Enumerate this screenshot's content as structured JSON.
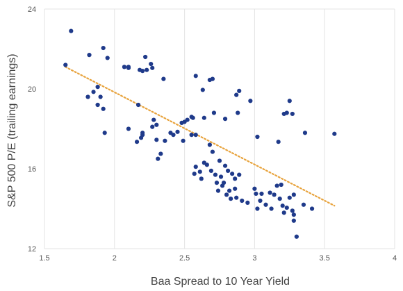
{
  "chart_data": {
    "type": "scatter",
    "xlabel": "Baa Spread to 10 Year Yield",
    "ylabel": "S&P 500 P/E (trailing earnings)",
    "xlim": [
      1.5,
      4
    ],
    "ylim": [
      12,
      24
    ],
    "xticks": [
      1.5,
      2,
      2.5,
      3,
      3.5,
      4
    ],
    "yticks": [
      12,
      16,
      20,
      24
    ],
    "xtick_labels": [
      "1.5",
      "2",
      "2.5",
      "3",
      "3.5",
      "4"
    ],
    "ytick_labels": [
      "12",
      "16",
      "20",
      "24"
    ],
    "grid": "vertical",
    "point_color": "#1f3a8a",
    "trendline": {
      "type": "linear",
      "color": "#e8a33c",
      "style": "dotted",
      "x": [
        1.65,
        3.57
      ],
      "y": [
        21.1,
        14.15
      ]
    },
    "points": [
      [
        1.69,
        22.9
      ],
      [
        1.65,
        21.2
      ],
      [
        1.82,
        21.7
      ],
      [
        1.92,
        22.05
      ],
      [
        1.95,
        21.55
      ],
      [
        2.07,
        21.1
      ],
      [
        2.1,
        21.05
      ],
      [
        2.1,
        21.1
      ],
      [
        2.18,
        20.95
      ],
      [
        2.2,
        20.9
      ],
      [
        2.22,
        21.6
      ],
      [
        2.26,
        21.25
      ],
      [
        2.27,
        21.05
      ],
      [
        2.23,
        20.95
      ],
      [
        2.35,
        20.5
      ],
      [
        2.58,
        20.65
      ],
      [
        2.63,
        19.95
      ],
      [
        2.68,
        20.45
      ],
      [
        2.7,
        20.5
      ],
      [
        2.89,
        19.9
      ],
      [
        2.87,
        19.7
      ],
      [
        2.97,
        19.4
      ],
      [
        3.25,
        19.4
      ],
      [
        1.81,
        19.6
      ],
      [
        1.85,
        19.85
      ],
      [
        1.88,
        20.1
      ],
      [
        1.9,
        19.6
      ],
      [
        1.88,
        19.2
      ],
      [
        1.92,
        19.0
      ],
      [
        2.17,
        19.2
      ],
      [
        3.21,
        18.75
      ],
      [
        3.23,
        18.8
      ],
      [
        3.27,
        18.75
      ],
      [
        2.71,
        18.8
      ],
      [
        2.88,
        18.8
      ],
      [
        2.79,
        18.5
      ],
      [
        2.64,
        18.55
      ],
      [
        2.52,
        18.45
      ],
      [
        2.55,
        18.6
      ],
      [
        2.56,
        18.55
      ],
      [
        2.48,
        18.3
      ],
      [
        2.5,
        18.35
      ],
      [
        2.28,
        18.45
      ],
      [
        2.3,
        18.2
      ],
      [
        2.27,
        18.1
      ],
      [
        2.1,
        18.0
      ],
      [
        1.93,
        17.8
      ],
      [
        2.2,
        17.8
      ],
      [
        2.2,
        17.7
      ],
      [
        2.19,
        17.55
      ],
      [
        2.16,
        17.35
      ],
      [
        2.3,
        17.45
      ],
      [
        2.36,
        17.4
      ],
      [
        2.4,
        17.8
      ],
      [
        2.42,
        17.7
      ],
      [
        2.45,
        17.85
      ],
      [
        2.49,
        17.4
      ],
      [
        2.55,
        17.7
      ],
      [
        2.58,
        17.7
      ],
      [
        3.02,
        17.6
      ],
      [
        3.17,
        17.35
      ],
      [
        3.36,
        17.8
      ],
      [
        3.57,
        17.75
      ],
      [
        2.68,
        17.2
      ],
      [
        2.7,
        16.85
      ],
      [
        2.33,
        16.75
      ],
      [
        2.31,
        16.5
      ],
      [
        2.75,
        16.4
      ],
      [
        2.58,
        16.1
      ],
      [
        2.61,
        15.85
      ],
      [
        2.64,
        16.3
      ],
      [
        2.66,
        16.2
      ],
      [
        2.69,
        15.9
      ],
      [
        2.72,
        15.7
      ],
      [
        2.76,
        15.6
      ],
      [
        2.79,
        16.15
      ],
      [
        2.81,
        15.9
      ],
      [
        2.84,
        15.75
      ],
      [
        2.86,
        15.5
      ],
      [
        2.89,
        15.7
      ],
      [
        2.62,
        15.5
      ],
      [
        2.57,
        15.75
      ],
      [
        2.78,
        15.3
      ],
      [
        2.73,
        15.3
      ],
      [
        2.77,
        15.15
      ],
      [
        2.74,
        14.9
      ],
      [
        2.82,
        14.9
      ],
      [
        2.86,
        15.0
      ],
      [
        2.8,
        14.7
      ],
      [
        2.83,
        14.5
      ],
      [
        2.87,
        14.55
      ],
      [
        2.91,
        14.4
      ],
      [
        2.95,
        14.3
      ],
      [
        3.0,
        15.0
      ],
      [
        3.01,
        14.75
      ],
      [
        3.05,
        14.75
      ],
      [
        3.04,
        14.4
      ],
      [
        3.08,
        14.2
      ],
      [
        3.11,
        14.8
      ],
      [
        3.14,
        14.7
      ],
      [
        3.16,
        15.15
      ],
      [
        3.19,
        15.2
      ],
      [
        3.18,
        14.5
      ],
      [
        3.2,
        14.15
      ],
      [
        3.23,
        14.05
      ],
      [
        3.25,
        14.55
      ],
      [
        3.28,
        14.7
      ],
      [
        3.02,
        14.0
      ],
      [
        3.12,
        14.0
      ],
      [
        3.21,
        13.8
      ],
      [
        3.27,
        13.9
      ],
      [
        3.28,
        13.7
      ],
      [
        3.28,
        13.4
      ],
      [
        3.3,
        12.6
      ],
      [
        3.35,
        14.2
      ],
      [
        3.41,
        14.0
      ]
    ]
  }
}
